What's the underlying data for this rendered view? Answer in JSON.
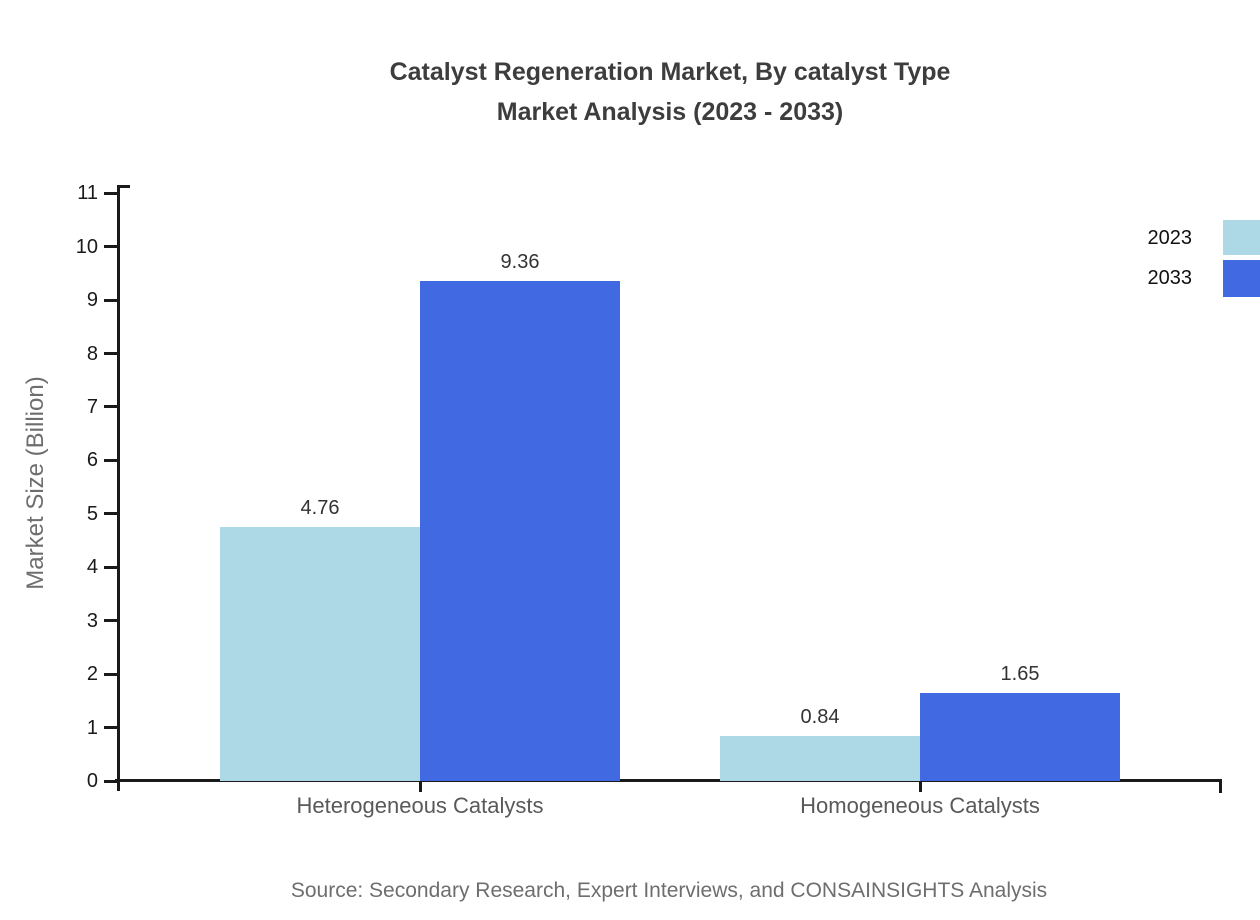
{
  "title": {
    "line1": "Catalyst Regeneration Market, By catalyst Type",
    "line2": "Market Analysis (2023 - 2033)"
  },
  "source_text": "Source: Secondary Research, Expert Interviews, and CONSAINSIGHTS Analysis",
  "chart_data": {
    "type": "bar",
    "title": "Catalyst Regeneration Market, By catalyst Type Market Analysis (2023 - 2033)",
    "categories": [
      "Heterogeneous Catalysts",
      "Homogeneous Catalysts"
    ],
    "series": [
      {
        "name": "2023",
        "color": "#ADD8E6",
        "values": [
          4.76,
          0.84
        ]
      },
      {
        "name": "2033",
        "color": "#4169E1",
        "values": [
          9.36,
          1.65
        ]
      }
    ],
    "xlabel": "",
    "ylabel": "Market Size (Billion)",
    "ylim": [
      0,
      11
    ],
    "ytick_step": 1,
    "yticks": [
      0,
      1,
      2,
      3,
      4,
      5,
      6,
      7,
      8,
      9,
      10,
      11
    ],
    "grid": false,
    "legend_position": "top-right",
    "value_labels": [
      "4.76",
      "9.36",
      "0.84",
      "1.65"
    ]
  },
  "colors": {
    "series_2023": "#ADD8E6",
    "series_2033": "#4169E1",
    "axis": "#1a1a1a",
    "title_text": "#3d3d3d",
    "category_text": "#595959",
    "muted_text": "#6e6e6e",
    "value_text": "#333333"
  }
}
